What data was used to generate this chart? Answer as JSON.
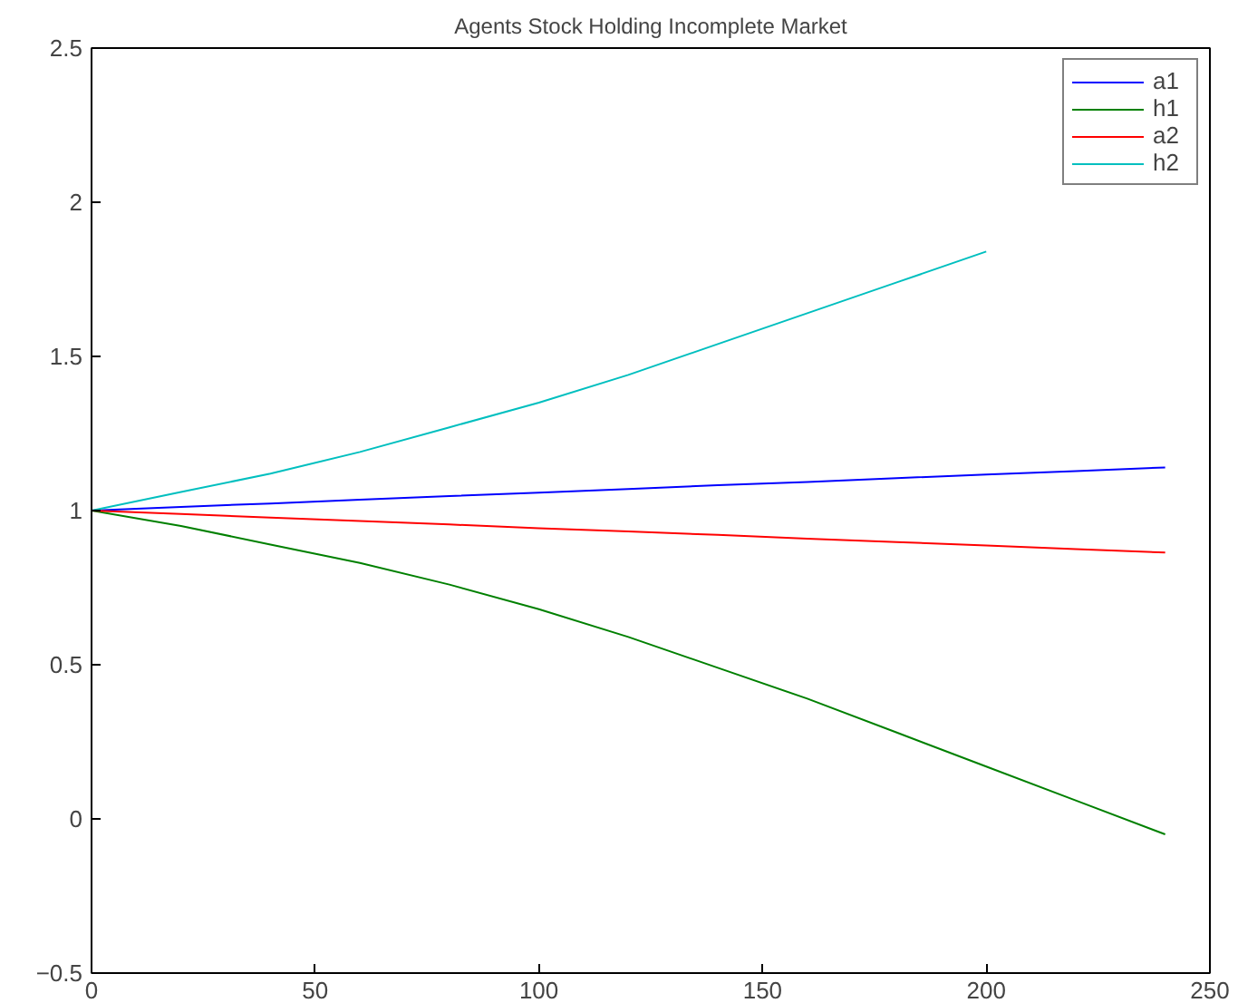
{
  "chart_data": {
    "type": "line",
    "title": "Agents Stock Holding Incomplete Market",
    "x": [
      0,
      20,
      40,
      60,
      80,
      100,
      120,
      140,
      160,
      180,
      200,
      220,
      240
    ],
    "series": [
      {
        "name": "a1",
        "color": "#0000ff",
        "values": [
          1,
          1.012,
          1.023,
          1.035,
          1.047,
          1.058,
          1.07,
          1.082,
          1.093,
          1.105,
          1.117,
          1.128,
          1.14
        ]
      },
      {
        "name": "h1",
        "color": "#008000",
        "values": [
          1,
          0.95,
          0.89,
          0.83,
          0.76,
          0.68,
          0.59,
          0.49,
          0.39,
          0.28,
          0.17,
          0.06,
          -0.05
        ]
      },
      {
        "name": "a2",
        "color": "#ff0000",
        "values": [
          1,
          0.989,
          0.977,
          0.966,
          0.955,
          0.943,
          0.932,
          0.921,
          0.909,
          0.898,
          0.887,
          0.875,
          0.864
        ]
      },
      {
        "name": "h2",
        "color": "#00bfbf",
        "values": [
          1,
          1.06,
          1.12,
          1.19,
          1.27,
          1.35,
          1.44,
          1.54,
          1.64,
          1.74,
          1.84,
          null,
          null
        ]
      }
    ],
    "xlim": [
      0,
      250
    ],
    "xticks": [
      0,
      50,
      100,
      150,
      200,
      250
    ],
    "ylim": [
      -0.5,
      2.5
    ],
    "yticks": [
      -0.5,
      0,
      0.5,
      1,
      1.5,
      2,
      2.5
    ],
    "grid": false,
    "legend": "top right"
  }
}
